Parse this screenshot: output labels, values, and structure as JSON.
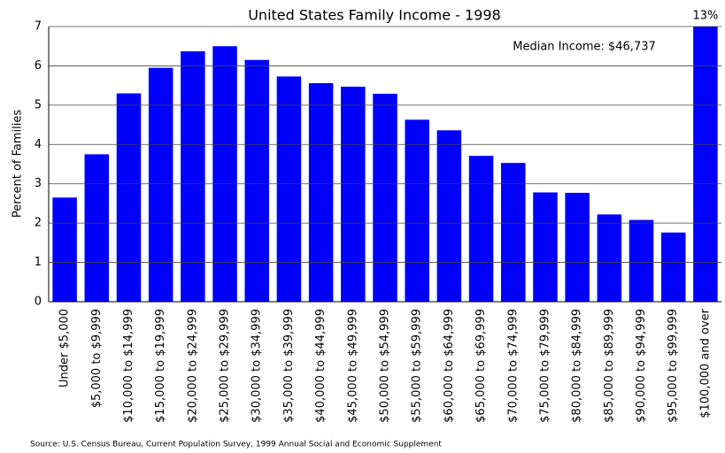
{
  "chart_data": {
    "type": "bar",
    "title": "United States Family Income - 1998",
    "y_label": "Percent of Families",
    "annotation": "Median Income: $46,737",
    "source": "Source: U.S. Census Bureau, Current Population Survey, 1999 Annual Social and Economic Supplement",
    "categories": [
      "Under $5,000",
      "$5,000 to $9,999",
      "$10,000 to $14,999",
      "$15,000 to $19,999",
      "$20,000 to $24,999",
      "$25,000 to $29,999",
      "$30,000 to $34,999",
      "$35,000 to $39,999",
      "$40,000 to $44,999",
      "$45,000 to $49,999",
      "$50,000 to $54,999",
      "$55,000 to $59,999",
      "$60,000 to $64,999",
      "$65,000 to $69,999",
      "$70,000 to $74,999",
      "$75,000 to $79,999",
      "$80,000 to $84,999",
      "$85,000 to $89,999",
      "$90,000 to $94,999",
      "$95,000 to $99,999",
      "$100,000 and over"
    ],
    "values": [
      2.65,
      3.75,
      5.3,
      5.95,
      6.37,
      6.5,
      6.15,
      5.73,
      5.56,
      5.47,
      5.29,
      4.63,
      4.36,
      3.71,
      3.53,
      2.78,
      2.77,
      2.22,
      2.08,
      1.76,
      13
    ],
    "value_labels": [
      null,
      null,
      null,
      null,
      null,
      null,
      null,
      null,
      null,
      null,
      null,
      null,
      null,
      null,
      null,
      null,
      null,
      null,
      null,
      null,
      "13%"
    ],
    "color": "#0000ff",
    "ylim": [
      0,
      7
    ],
    "yticks": [
      0,
      1,
      2,
      3,
      4,
      5,
      6,
      7
    ],
    "grid": true
  }
}
